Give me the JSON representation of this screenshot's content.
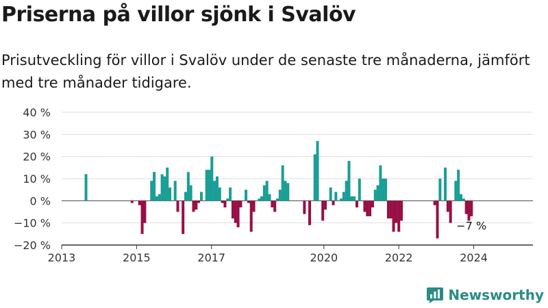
{
  "header": {
    "title": "Priserna på villor sjönk i Svalöv",
    "subtitle": "Prisutveckling för villor i Svalöv under de senaste tre månaderna, jämfört med tre månader tidigare."
  },
  "brand": {
    "name": "Newsworthy",
    "icon": "newsworthy-chart-icon"
  },
  "colors": {
    "positive": "#1a9e96",
    "negative": "#970f45",
    "axis": "#333333",
    "grid": "#dddddd",
    "brand": "#2a8c84"
  },
  "chart_data": {
    "type": "bar",
    "title": "",
    "xlabel": "",
    "ylabel": "",
    "ylim": [
      -20,
      40
    ],
    "yticks": [
      40,
      30,
      20,
      10,
      0,
      -10,
      -20
    ],
    "ytick_labels": [
      "40 %",
      "30 %",
      "20 %",
      "10 %",
      "0 %",
      "−10 %",
      "−20 %"
    ],
    "x_ticks": [
      {
        "label": "2013",
        "year": 2013.0
      },
      {
        "label": "2015",
        "year": 2015.0
      },
      {
        "label": "2017",
        "year": 2017.0
      },
      {
        "label": "2020",
        "year": 2020.0
      },
      {
        "label": "2022",
        "year": 2022.0
      },
      {
        "label": "2024",
        "year": 2024.0
      }
    ],
    "xlim": [
      2013.0,
      2025.58
    ],
    "grid": true,
    "bars": [
      {
        "year": 2013.65,
        "value": 12
      },
      {
        "year": 2014.88,
        "value": -1
      },
      {
        "year": 2015.08,
        "value": -2
      },
      {
        "year": 2015.15,
        "value": -15
      },
      {
        "year": 2015.22,
        "value": -10
      },
      {
        "year": 2015.4,
        "value": 9
      },
      {
        "year": 2015.47,
        "value": 13
      },
      {
        "year": 2015.54,
        "value": 2
      },
      {
        "year": 2015.61,
        "value": 3
      },
      {
        "year": 2015.68,
        "value": 12
      },
      {
        "year": 2015.75,
        "value": 11
      },
      {
        "year": 2015.82,
        "value": 15
      },
      {
        "year": 2015.89,
        "value": 6
      },
      {
        "year": 2016.03,
        "value": 9
      },
      {
        "year": 2016.1,
        "value": -5
      },
      {
        "year": 2016.24,
        "value": -15
      },
      {
        "year": 2016.31,
        "value": 4
      },
      {
        "year": 2016.38,
        "value": 13
      },
      {
        "year": 2016.45,
        "value": 7
      },
      {
        "year": 2016.52,
        "value": -5
      },
      {
        "year": 2016.59,
        "value": -4
      },
      {
        "year": 2016.66,
        "value": -1
      },
      {
        "year": 2016.73,
        "value": 4
      },
      {
        "year": 2016.87,
        "value": 14
      },
      {
        "year": 2016.94,
        "value": 14
      },
      {
        "year": 2017.01,
        "value": 20
      },
      {
        "year": 2017.08,
        "value": 9
      },
      {
        "year": 2017.15,
        "value": 11
      },
      {
        "year": 2017.22,
        "value": 6
      },
      {
        "year": 2017.29,
        "value": -1
      },
      {
        "year": 2017.36,
        "value": -3
      },
      {
        "year": 2017.43,
        "value": 1
      },
      {
        "year": 2017.5,
        "value": 6
      },
      {
        "year": 2017.57,
        "value": -8
      },
      {
        "year": 2017.64,
        "value": -10
      },
      {
        "year": 2017.71,
        "value": -12
      },
      {
        "year": 2017.78,
        "value": -3
      },
      {
        "year": 2017.92,
        "value": 5
      },
      {
        "year": 2017.99,
        "value": -1
      },
      {
        "year": 2018.06,
        "value": -14
      },
      {
        "year": 2018.13,
        "value": -5
      },
      {
        "year": 2018.27,
        "value": 1
      },
      {
        "year": 2018.34,
        "value": 2
      },
      {
        "year": 2018.41,
        "value": 7
      },
      {
        "year": 2018.48,
        "value": 9
      },
      {
        "year": 2018.55,
        "value": 3
      },
      {
        "year": 2018.62,
        "value": -3
      },
      {
        "year": 2018.69,
        "value": -5
      },
      {
        "year": 2018.76,
        "value": 1
      },
      {
        "year": 2018.83,
        "value": 5
      },
      {
        "year": 2018.9,
        "value": 16
      },
      {
        "year": 2018.97,
        "value": 9
      },
      {
        "year": 2019.04,
        "value": 8
      },
      {
        "year": 2019.48,
        "value": -6
      },
      {
        "year": 2019.62,
        "value": -11
      },
      {
        "year": 2019.76,
        "value": 21
      },
      {
        "year": 2019.83,
        "value": 27
      },
      {
        "year": 2019.97,
        "value": -9
      },
      {
        "year": 2020.04,
        "value": -4
      },
      {
        "year": 2020.18,
        "value": 6
      },
      {
        "year": 2020.25,
        "value": -2
      },
      {
        "year": 2020.32,
        "value": 4
      },
      {
        "year": 2020.46,
        "value": 1
      },
      {
        "year": 2020.53,
        "value": 4
      },
      {
        "year": 2020.6,
        "value": 9
      },
      {
        "year": 2020.67,
        "value": 18
      },
      {
        "year": 2020.74,
        "value": 2
      },
      {
        "year": 2020.81,
        "value": 2
      },
      {
        "year": 2020.88,
        "value": -3
      },
      {
        "year": 2020.95,
        "value": 10
      },
      {
        "year": 2021.09,
        "value": -5
      },
      {
        "year": 2021.16,
        "value": -7
      },
      {
        "year": 2021.23,
        "value": -7
      },
      {
        "year": 2021.3,
        "value": -3
      },
      {
        "year": 2021.37,
        "value": 5
      },
      {
        "year": 2021.44,
        "value": 7
      },
      {
        "year": 2021.51,
        "value": 16
      },
      {
        "year": 2021.58,
        "value": 10
      },
      {
        "year": 2021.65,
        "value": 10
      },
      {
        "year": 2021.72,
        "value": -8
      },
      {
        "year": 2021.79,
        "value": -8
      },
      {
        "year": 2021.86,
        "value": -14
      },
      {
        "year": 2021.93,
        "value": -10
      },
      {
        "year": 2022.0,
        "value": -14
      },
      {
        "year": 2022.07,
        "value": -9
      },
      {
        "year": 2022.96,
        "value": -2
      },
      {
        "year": 2023.03,
        "value": -17
      },
      {
        "year": 2023.1,
        "value": 10
      },
      {
        "year": 2023.24,
        "value": 15
      },
      {
        "year": 2023.31,
        "value": -5
      },
      {
        "year": 2023.38,
        "value": -10
      },
      {
        "year": 2023.52,
        "value": 9
      },
      {
        "year": 2023.59,
        "value": 14
      },
      {
        "year": 2023.66,
        "value": 3
      },
      {
        "year": 2023.73,
        "value": 1
      },
      {
        "year": 2023.8,
        "value": -6
      },
      {
        "year": 2023.87,
        "value": -9
      },
      {
        "year": 2023.94,
        "value": -7
      }
    ],
    "annotation": {
      "label": "−7 %",
      "year": 2023.94
    }
  }
}
